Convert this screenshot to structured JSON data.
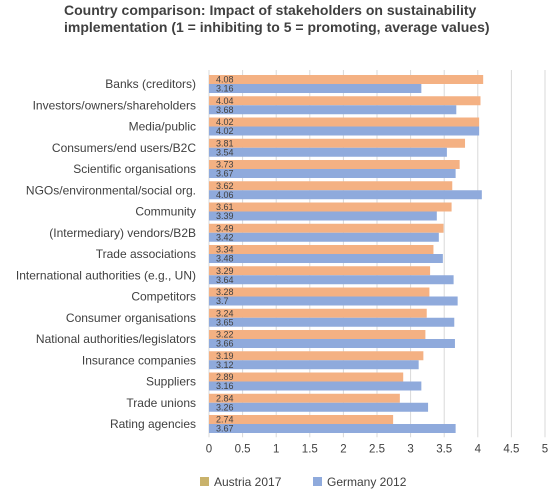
{
  "chart_data": {
    "type": "bar",
    "orientation": "horizontal",
    "title": "Country comparison: Impact of stakeholders on sustainability implementation (1 = inhibiting to 5 = promoting, average values)",
    "categories": [
      "Banks (creditors)",
      "Investors/owners/shareholders",
      "Media/public",
      "Consumers/end users/B2C",
      "Scientific organisations",
      "NGOs/environmental/social org.",
      "Community",
      "(Intermediary) vendors/B2B",
      "Trade associations",
      "International authorities (e.g., UN)",
      "Competitors",
      "Consumer organisations",
      "National authorities/legislators",
      "Insurance companies",
      "Suppliers",
      "Trade unions",
      "Rating agencies"
    ],
    "series": [
      {
        "name": "Austria 2017",
        "color": "#F4B183",
        "values": [
          4.08,
          4.04,
          4.02,
          3.81,
          3.73,
          3.62,
          3.61,
          3.49,
          3.34,
          3.29,
          3.28,
          3.24,
          3.22,
          3.19,
          2.89,
          2.84,
          2.74
        ],
        "labels": [
          "4.08",
          "4.04",
          "4.02",
          "3.81",
          "3.73",
          "3.62",
          "3.61",
          "3.49",
          "3.34",
          "3.29",
          "3.28",
          "3.24",
          "3.22",
          "3.19",
          "2.89",
          "2.84",
          "2.74"
        ]
      },
      {
        "name": "Germany 2012",
        "color": "#8FAADC",
        "values": [
          3.16,
          3.68,
          4.02,
          3.54,
          3.67,
          4.06,
          3.39,
          3.42,
          3.48,
          3.64,
          3.7,
          3.65,
          3.66,
          3.12,
          3.16,
          3.26,
          3.67
        ],
        "labels": [
          "3.16",
          "3.68",
          "4.02",
          "3.54",
          "3.67",
          "4.06",
          "3.39",
          "3.42",
          "3.48",
          "3.64",
          "3.7",
          "3.65",
          "3.66",
          "3.12",
          "3.16",
          "3.26",
          "3.67"
        ]
      }
    ],
    "xlim": [
      0,
      5
    ],
    "xticks": [
      "0",
      "0.5",
      "1",
      "1.5",
      "2",
      "2.5",
      "3",
      "3.5",
      "4",
      "4.5",
      "5"
    ],
    "legend": {
      "position": "bottom",
      "items": [
        {
          "label": "Austria 2017",
          "color": "#C9B26B"
        },
        {
          "label": "Germany 2012",
          "color": "#8FAADC"
        }
      ]
    },
    "grid": true,
    "colors": {
      "gridline": "#D9D9D9",
      "text": "#404040",
      "data_label": "#404040"
    }
  }
}
